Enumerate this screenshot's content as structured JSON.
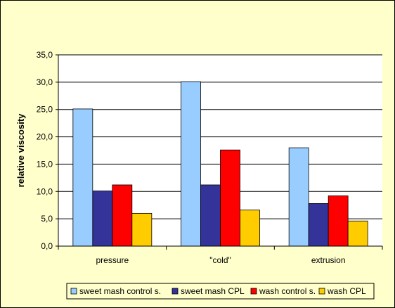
{
  "chart_data": {
    "type": "bar",
    "title": "",
    "xlabel": "",
    "ylabel": "relative viscosity",
    "ylim": [
      0,
      35
    ],
    "ytick_step": 5,
    "ytick_labels": [
      "0,0",
      "5,0",
      "10,0",
      "15,0",
      "20,0",
      "25,0",
      "30,0",
      "35,0"
    ],
    "grid": true,
    "legend_position": "bottom",
    "categories": [
      "pressure",
      "\"cold\"",
      "extrusion"
    ],
    "series": [
      {
        "name": "sweet mash control s.",
        "color": "#99ccff",
        "values": [
          25.1,
          30.1,
          18.0
        ]
      },
      {
        "name": "sweet mash CPL",
        "color": "#333399",
        "values": [
          10.1,
          11.2,
          7.8
        ]
      },
      {
        "name": "wash control s.",
        "color": "#ff0000",
        "values": [
          11.2,
          17.6,
          9.2
        ]
      },
      {
        "name": "wash CPL",
        "color": "#ffcc00",
        "values": [
          6.0,
          6.6,
          4.6
        ]
      }
    ]
  }
}
